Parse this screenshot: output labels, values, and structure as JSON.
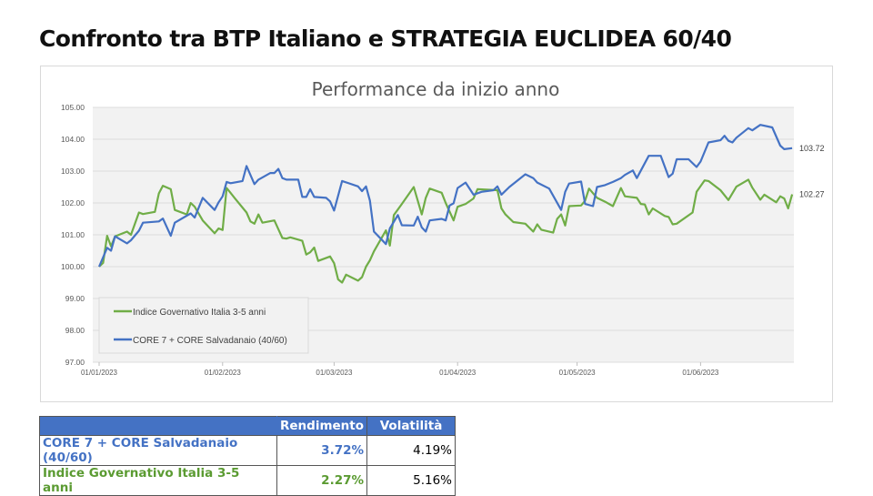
{
  "page_title": "Confronto tra BTP Italiano e STRATEGIA EUCLIDEA 60/40",
  "chart_data": {
    "type": "line",
    "title": "Performance da inizio anno",
    "xlabel": "",
    "ylabel": "",
    "ylim": [
      97,
      105
    ],
    "yticks": [
      "97.00",
      "98.00",
      "99.00",
      "100.00",
      "101.00",
      "102.00",
      "103.00",
      "104.00",
      "105.00"
    ],
    "xlim": [
      "2023-01-01",
      "2023-06-30"
    ],
    "xticks": [
      [
        "2023-01-01",
        "01/01/2023"
      ],
      [
        "2023-02-01",
        "01/02/2023"
      ],
      [
        "2023-03-01",
        "01/03/2023"
      ],
      [
        "2023-04-01",
        "01/04/2023"
      ],
      [
        "2023-05-01",
        "01/05/2023"
      ],
      [
        "2023-06-01",
        "01/06/2023"
      ]
    ],
    "grid": "horizontal",
    "legend_position": "bottom-left",
    "series": [
      {
        "name": "Indice Governativo Italia 3-5 anni",
        "color": "#70ad47",
        "end_label": "102.27",
        "points": [
          [
            "2023-01-01",
            100.0
          ],
          [
            "2023-01-02",
            100.12
          ],
          [
            "2023-01-03",
            100.97
          ],
          [
            "2023-01-04",
            100.64
          ],
          [
            "2023-01-05",
            100.95
          ],
          [
            "2023-01-08",
            101.1
          ],
          [
            "2023-01-09",
            101.0
          ],
          [
            "2023-01-11",
            101.7
          ],
          [
            "2023-01-12",
            101.65
          ],
          [
            "2023-01-15",
            101.72
          ],
          [
            "2023-01-16",
            102.3
          ],
          [
            "2023-01-17",
            102.54
          ],
          [
            "2023-01-19",
            102.43
          ],
          [
            "2023-01-20",
            101.78
          ],
          [
            "2023-01-23",
            101.64
          ],
          [
            "2023-01-24",
            102.0
          ],
          [
            "2023-01-25",
            101.88
          ],
          [
            "2023-01-27",
            101.45
          ],
          [
            "2023-01-30",
            101.05
          ],
          [
            "2023-01-31",
            101.2
          ],
          [
            "2023-02-01",
            101.15
          ],
          [
            "2023-02-02",
            102.47
          ],
          [
            "2023-02-04",
            102.16
          ],
          [
            "2023-02-07",
            101.7
          ],
          [
            "2023-02-08",
            101.42
          ],
          [
            "2023-02-09",
            101.35
          ],
          [
            "2023-02-10",
            101.64
          ],
          [
            "2023-02-11",
            101.38
          ],
          [
            "2023-02-14",
            101.45
          ],
          [
            "2023-02-16",
            100.9
          ],
          [
            "2023-02-17",
            100.88
          ],
          [
            "2023-02-18",
            100.92
          ],
          [
            "2023-02-21",
            100.81
          ],
          [
            "2023-02-22",
            100.38
          ],
          [
            "2023-02-23",
            100.45
          ],
          [
            "2023-02-24",
            100.6
          ],
          [
            "2023-02-25",
            100.18
          ],
          [
            "2023-02-28",
            100.32
          ],
          [
            "2023-03-01",
            100.11
          ],
          [
            "2023-03-02",
            99.6
          ],
          [
            "2023-03-03",
            99.5
          ],
          [
            "2023-03-04",
            99.75
          ],
          [
            "2023-03-07",
            99.56
          ],
          [
            "2023-03-08",
            99.67
          ],
          [
            "2023-03-09",
            100.0
          ],
          [
            "2023-03-10",
            100.2
          ],
          [
            "2023-03-11",
            100.48
          ],
          [
            "2023-03-14",
            101.14
          ],
          [
            "2023-03-15",
            100.66
          ],
          [
            "2023-03-16",
            101.62
          ],
          [
            "2023-03-18",
            101.97
          ],
          [
            "2023-03-21",
            102.5
          ],
          [
            "2023-03-23",
            101.64
          ],
          [
            "2023-03-24",
            102.16
          ],
          [
            "2023-03-25",
            102.45
          ],
          [
            "2023-03-28",
            102.32
          ],
          [
            "2023-03-29",
            102.0
          ],
          [
            "2023-03-31",
            101.45
          ],
          [
            "2023-04-01",
            101.88
          ],
          [
            "2023-04-03",
            101.97
          ],
          [
            "2023-04-05",
            102.14
          ],
          [
            "2023-04-06",
            102.43
          ],
          [
            "2023-04-11",
            102.4
          ],
          [
            "2023-04-12",
            101.83
          ],
          [
            "2023-04-13",
            101.64
          ],
          [
            "2023-04-15",
            101.4
          ],
          [
            "2023-04-18",
            101.35
          ],
          [
            "2023-04-20",
            101.1
          ],
          [
            "2023-04-21",
            101.33
          ],
          [
            "2023-04-22",
            101.16
          ],
          [
            "2023-04-25",
            101.07
          ],
          [
            "2023-04-26",
            101.5
          ],
          [
            "2023-04-27",
            101.64
          ],
          [
            "2023-04-28",
            101.29
          ],
          [
            "2023-04-29",
            101.9
          ],
          [
            "2023-05-02",
            101.92
          ],
          [
            "2023-05-03",
            102.07
          ],
          [
            "2023-05-04",
            102.45
          ],
          [
            "2023-05-06",
            102.16
          ],
          [
            "2023-05-08",
            102.04
          ],
          [
            "2023-05-10",
            101.9
          ],
          [
            "2023-05-12",
            102.47
          ],
          [
            "2023-05-13",
            102.21
          ],
          [
            "2023-05-16",
            102.16
          ],
          [
            "2023-05-17",
            101.97
          ],
          [
            "2023-05-18",
            101.95
          ],
          [
            "2023-05-19",
            101.64
          ],
          [
            "2023-05-20",
            101.83
          ],
          [
            "2023-05-23",
            101.59
          ],
          [
            "2023-05-24",
            101.56
          ],
          [
            "2023-05-25",
            101.33
          ],
          [
            "2023-05-26",
            101.35
          ],
          [
            "2023-05-30",
            101.7
          ],
          [
            "2023-05-31",
            102.35
          ],
          [
            "2023-06-02",
            102.71
          ],
          [
            "2023-06-03",
            102.69
          ],
          [
            "2023-06-06",
            102.4
          ],
          [
            "2023-06-08",
            102.09
          ],
          [
            "2023-06-10",
            102.51
          ],
          [
            "2023-06-13",
            102.73
          ],
          [
            "2023-06-14",
            102.48
          ],
          [
            "2023-06-16",
            102.1
          ],
          [
            "2023-06-17",
            102.26
          ],
          [
            "2023-06-20",
            102.02
          ],
          [
            "2023-06-21",
            102.21
          ],
          [
            "2023-06-22",
            102.14
          ],
          [
            "2023-06-23",
            101.83
          ],
          [
            "2023-06-24",
            102.27
          ]
        ]
      },
      {
        "name": "CORE 7 + CORE Salvadanaio (40/60)",
        "color": "#4472c4",
        "end_label": "103.72",
        "points": [
          [
            "2023-01-01",
            100.0
          ],
          [
            "2023-01-03",
            100.59
          ],
          [
            "2023-01-04",
            100.5
          ],
          [
            "2023-01-05",
            100.95
          ],
          [
            "2023-01-08",
            100.73
          ],
          [
            "2023-01-09",
            100.83
          ],
          [
            "2023-01-11",
            101.13
          ],
          [
            "2023-01-12",
            101.38
          ],
          [
            "2023-01-16",
            101.42
          ],
          [
            "2023-01-17",
            101.51
          ],
          [
            "2023-01-19",
            100.97
          ],
          [
            "2023-01-20",
            101.38
          ],
          [
            "2023-01-24",
            101.67
          ],
          [
            "2023-01-25",
            101.54
          ],
          [
            "2023-01-27",
            102.16
          ],
          [
            "2023-01-30",
            101.78
          ],
          [
            "2023-01-31",
            102.02
          ],
          [
            "2023-02-01",
            102.21
          ],
          [
            "2023-02-02",
            102.66
          ],
          [
            "2023-02-03",
            102.62
          ],
          [
            "2023-02-06",
            102.69
          ],
          [
            "2023-02-07",
            103.16
          ],
          [
            "2023-02-09",
            102.59
          ],
          [
            "2023-02-10",
            102.73
          ],
          [
            "2023-02-13",
            102.94
          ],
          [
            "2023-02-14",
            102.94
          ],
          [
            "2023-02-15",
            103.07
          ],
          [
            "2023-02-16",
            102.78
          ],
          [
            "2023-02-17",
            102.73
          ],
          [
            "2023-02-20",
            102.73
          ],
          [
            "2023-02-21",
            102.19
          ],
          [
            "2023-02-22",
            102.19
          ],
          [
            "2023-02-23",
            102.43
          ],
          [
            "2023-02-24",
            102.19
          ],
          [
            "2023-02-27",
            102.16
          ],
          [
            "2023-02-28",
            102.05
          ],
          [
            "2023-03-01",
            101.76
          ],
          [
            "2023-03-03",
            102.69
          ],
          [
            "2023-03-07",
            102.52
          ],
          [
            "2023-03-08",
            102.37
          ],
          [
            "2023-03-09",
            102.52
          ],
          [
            "2023-03-10",
            102.07
          ],
          [
            "2023-03-11",
            101.1
          ],
          [
            "2023-03-14",
            100.71
          ],
          [
            "2023-03-15",
            101.2
          ],
          [
            "2023-03-17",
            101.62
          ],
          [
            "2023-03-18",
            101.3
          ],
          [
            "2023-03-21",
            101.29
          ],
          [
            "2023-03-22",
            101.57
          ],
          [
            "2023-03-23",
            101.23
          ],
          [
            "2023-03-24",
            101.1
          ],
          [
            "2023-03-25",
            101.45
          ],
          [
            "2023-03-28",
            101.5
          ],
          [
            "2023-03-29",
            101.45
          ],
          [
            "2023-03-30",
            101.92
          ],
          [
            "2023-03-31",
            101.99
          ],
          [
            "2023-04-01",
            102.47
          ],
          [
            "2023-04-03",
            102.64
          ],
          [
            "2023-04-05",
            102.26
          ],
          [
            "2023-04-07",
            102.35
          ],
          [
            "2023-04-10",
            102.4
          ],
          [
            "2023-04-11",
            102.52
          ],
          [
            "2023-04-12",
            102.26
          ],
          [
            "2023-04-14",
            102.5
          ],
          [
            "2023-04-18",
            102.9
          ],
          [
            "2023-04-20",
            102.78
          ],
          [
            "2023-04-21",
            102.64
          ],
          [
            "2023-04-24",
            102.45
          ],
          [
            "2023-04-27",
            101.78
          ],
          [
            "2023-04-28",
            102.35
          ],
          [
            "2023-04-29",
            102.61
          ],
          [
            "2023-05-02",
            102.67
          ],
          [
            "2023-05-03",
            101.97
          ],
          [
            "2023-05-05",
            101.9
          ],
          [
            "2023-05-06",
            102.5
          ],
          [
            "2023-05-08",
            102.56
          ],
          [
            "2023-05-10",
            102.66
          ],
          [
            "2023-05-12",
            102.78
          ],
          [
            "2023-05-13",
            102.88
          ],
          [
            "2023-05-15",
            103.02
          ],
          [
            "2023-05-16",
            102.78
          ],
          [
            "2023-05-19",
            103.48
          ],
          [
            "2023-05-22",
            103.48
          ],
          [
            "2023-05-24",
            102.81
          ],
          [
            "2023-05-25",
            102.92
          ],
          [
            "2023-05-26",
            103.37
          ],
          [
            "2023-05-29",
            103.37
          ],
          [
            "2023-05-31",
            103.13
          ],
          [
            "2023-06-01",
            103.3
          ],
          [
            "2023-06-03",
            103.9
          ],
          [
            "2023-06-06",
            103.97
          ],
          [
            "2023-06-07",
            104.11
          ],
          [
            "2023-06-08",
            103.95
          ],
          [
            "2023-06-09",
            103.9
          ],
          [
            "2023-06-10",
            104.05
          ],
          [
            "2023-06-13",
            104.35
          ],
          [
            "2023-06-14",
            104.28
          ],
          [
            "2023-06-16",
            104.45
          ],
          [
            "2023-06-19",
            104.37
          ],
          [
            "2023-06-21",
            103.8
          ],
          [
            "2023-06-22",
            103.69
          ],
          [
            "2023-06-24",
            103.72
          ]
        ]
      }
    ]
  },
  "table": {
    "headers": [
      "",
      "Rendimento",
      "Volatilità"
    ],
    "rows": [
      {
        "label": "CORE 7 + CORE Salvadanaio (40/60)",
        "rendimento": "3.72%",
        "volatilita": "4.19%"
      },
      {
        "label": "Indice Governativo Italia 3-5 anni",
        "rendimento": "2.27%",
        "volatilita": "5.16%"
      }
    ]
  }
}
